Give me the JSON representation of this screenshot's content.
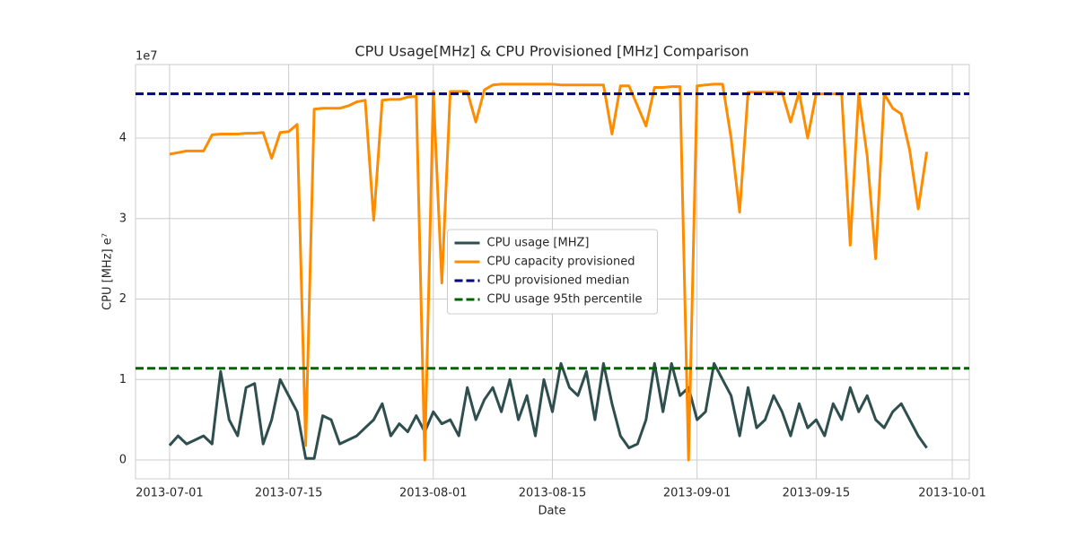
{
  "chart_data": {
    "type": "line",
    "title": "CPU Usage[MHz] & CPU Provisioned [MHz] Comparison",
    "xlabel": "Date",
    "ylabel": "CPU [MHz]  e⁷",
    "y_offset_label": "1e7",
    "x": [
      "2013-07-01",
      "2013-07-02",
      "2013-07-03",
      "2013-07-04",
      "2013-07-05",
      "2013-07-06",
      "2013-07-07",
      "2013-07-08",
      "2013-07-09",
      "2013-07-10",
      "2013-07-11",
      "2013-07-12",
      "2013-07-13",
      "2013-07-14",
      "2013-07-15",
      "2013-07-16",
      "2013-07-17",
      "2013-07-18",
      "2013-07-19",
      "2013-07-20",
      "2013-07-21",
      "2013-07-22",
      "2013-07-23",
      "2013-07-24",
      "2013-07-25",
      "2013-07-26",
      "2013-07-27",
      "2013-07-28",
      "2013-07-29",
      "2013-07-30",
      "2013-07-31",
      "2013-08-01",
      "2013-08-02",
      "2013-08-03",
      "2013-08-04",
      "2013-08-05",
      "2013-08-06",
      "2013-08-07",
      "2013-08-08",
      "2013-08-09",
      "2013-08-10",
      "2013-08-11",
      "2013-08-12",
      "2013-08-13",
      "2013-08-14",
      "2013-08-15",
      "2013-08-16",
      "2013-08-17",
      "2013-08-18",
      "2013-08-19",
      "2013-08-20",
      "2013-08-21",
      "2013-08-22",
      "2013-08-23",
      "2013-08-24",
      "2013-08-25",
      "2013-08-26",
      "2013-08-27",
      "2013-08-28",
      "2013-08-29",
      "2013-08-30",
      "2013-08-31",
      "2013-09-01",
      "2013-09-02",
      "2013-09-03",
      "2013-09-04",
      "2013-09-05",
      "2013-09-06",
      "2013-09-07",
      "2013-09-08",
      "2013-09-09",
      "2013-09-10",
      "2013-09-11",
      "2013-09-12",
      "2013-09-13",
      "2013-09-14",
      "2013-09-15",
      "2013-09-16",
      "2013-09-17",
      "2013-09-18",
      "2013-09-19",
      "2013-09-20",
      "2013-09-21",
      "2013-09-22",
      "2013-09-23",
      "2013-09-24",
      "2013-09-25",
      "2013-09-26",
      "2013-09-27",
      "2013-09-28"
    ],
    "series": [
      {
        "name": "CPU usage [MHZ]",
        "color": "#2f4f4f",
        "values": [
          0.18,
          0.3,
          0.2,
          0.25,
          0.3,
          0.2,
          1.1,
          0.5,
          0.3,
          0.9,
          0.95,
          0.2,
          0.5,
          1.0,
          0.8,
          0.6,
          0.02,
          0.02,
          0.55,
          0.5,
          0.2,
          0.25,
          0.3,
          0.4,
          0.5,
          0.7,
          0.3,
          0.45,
          0.35,
          0.55,
          0.35,
          0.6,
          0.45,
          0.5,
          0.3,
          0.9,
          0.5,
          0.75,
          0.9,
          0.6,
          1.0,
          0.5,
          0.8,
          0.3,
          1.0,
          0.6,
          1.2,
          0.9,
          0.8,
          1.1,
          0.5,
          1.2,
          0.7,
          0.3,
          0.15,
          0.2,
          0.5,
          1.2,
          0.6,
          1.2,
          0.8,
          0.9,
          0.5,
          0.6,
          1.2,
          1.0,
          0.8,
          0.3,
          0.9,
          0.4,
          0.5,
          0.8,
          0.6,
          0.3,
          0.7,
          0.4,
          0.5,
          0.3,
          0.7,
          0.5,
          0.9,
          0.6,
          0.8,
          0.5,
          0.4,
          0.6,
          0.7,
          0.5,
          0.3,
          0.15
        ]
      },
      {
        "name": "CPU capacity provisioned",
        "color": "#ff8c00",
        "values": [
          3.8,
          3.82,
          3.84,
          3.84,
          3.84,
          4.04,
          4.05,
          4.05,
          4.05,
          4.06,
          4.06,
          4.07,
          3.75,
          4.07,
          4.08,
          4.17,
          0.18,
          4.36,
          4.37,
          4.37,
          4.37,
          4.4,
          4.45,
          4.47,
          2.98,
          4.47,
          4.48,
          4.48,
          4.51,
          4.52,
          0,
          4.58,
          2.2,
          4.58,
          4.58,
          4.58,
          4.2,
          4.6,
          4.66,
          4.67,
          4.67,
          4.67,
          4.67,
          4.67,
          4.67,
          4.67,
          4.66,
          4.66,
          4.66,
          4.66,
          4.66,
          4.66,
          4.05,
          4.65,
          4.65,
          4.4,
          4.15,
          4.63,
          4.63,
          4.64,
          4.64,
          0,
          4.65,
          4.66,
          4.67,
          4.67,
          4.0,
          3.08,
          4.57,
          4.57,
          4.57,
          4.57,
          4.57,
          4.2,
          4.57,
          4.0,
          4.55,
          4.55,
          4.55,
          4.55,
          2.67,
          4.55,
          3.78,
          2.5,
          4.55,
          4.37,
          4.3,
          3.85,
          3.12,
          3.83
        ]
      }
    ],
    "reference_lines": [
      {
        "name": "CPU provisioned median",
        "color": "#000080",
        "value": 4.55
      },
      {
        "name": "CPU usage 95th percentile",
        "color": "#006400",
        "value": 1.14
      }
    ],
    "xlim": [
      "2013-06-27",
      "2013-10-03"
    ],
    "xticks": [
      "2013-07-01",
      "2013-07-15",
      "2013-08-01",
      "2013-08-15",
      "2013-09-01",
      "2013-09-15",
      "2013-10-01"
    ],
    "ylim": [
      -0.234,
      4.914
    ],
    "yticks": [
      0,
      1,
      2,
      3,
      4
    ],
    "grid": true,
    "legend": "center"
  }
}
